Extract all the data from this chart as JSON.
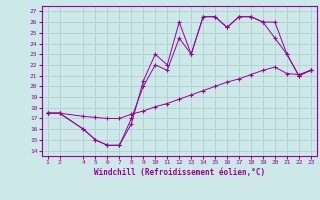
{
  "xlabel": "Windchill (Refroidissement éolien,°C)",
  "bg_color": "#cce8e8",
  "line_color": "#990099",
  "grid_color": "#aacccc",
  "xlim": [
    0.5,
    23.5
  ],
  "ylim": [
    13.5,
    27.5
  ],
  "xticks": [
    1,
    2,
    4,
    5,
    6,
    7,
    8,
    9,
    10,
    11,
    12,
    13,
    14,
    15,
    16,
    17,
    18,
    19,
    20,
    21,
    22,
    23
  ],
  "yticks": [
    14,
    15,
    16,
    17,
    18,
    19,
    20,
    21,
    22,
    23,
    24,
    25,
    26,
    27
  ],
  "line1_x": [
    1,
    2,
    4,
    5,
    6,
    7,
    8,
    9,
    10,
    11,
    12,
    13,
    14,
    15,
    16,
    17,
    18,
    19,
    20,
    21,
    22,
    23
  ],
  "line1_y": [
    17.5,
    17.5,
    16.0,
    15.0,
    14.5,
    14.5,
    16.5,
    20.5,
    23.0,
    22.0,
    26.0,
    23.0,
    26.5,
    26.5,
    25.5,
    26.5,
    26.5,
    26.0,
    26.0,
    23.0,
    21.0,
    21.5
  ],
  "line2_x": [
    1,
    2,
    4,
    5,
    6,
    7,
    8,
    9,
    10,
    11,
    12,
    13,
    14,
    15,
    16,
    17,
    18,
    19,
    20,
    21,
    22,
    23
  ],
  "line2_y": [
    17.5,
    17.5,
    16.0,
    15.0,
    14.5,
    14.5,
    17.0,
    20.0,
    22.0,
    21.5,
    24.5,
    23.0,
    26.5,
    26.5,
    25.5,
    26.5,
    26.5,
    26.0,
    24.5,
    23.0,
    21.0,
    21.5
  ],
  "line3_x": [
    1,
    2,
    4,
    5,
    6,
    7,
    8,
    9,
    10,
    11,
    12,
    13,
    14,
    15,
    16,
    17,
    18,
    19,
    20,
    21,
    22,
    23
  ],
  "line3_y": [
    17.5,
    17.5,
    17.2,
    17.1,
    17.0,
    17.0,
    17.4,
    17.7,
    18.1,
    18.4,
    18.8,
    19.2,
    19.6,
    20.0,
    20.4,
    20.7,
    21.1,
    21.5,
    21.8,
    21.2,
    21.1,
    21.5
  ]
}
